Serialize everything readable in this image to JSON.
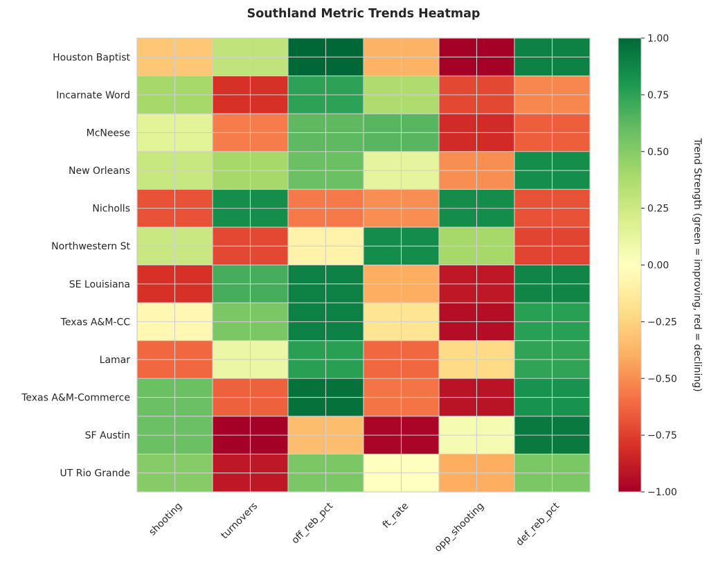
{
  "chart_data": {
    "type": "heatmap",
    "title": "Southland Metric Trends Heatmap",
    "xlabel": "",
    "ylabel": "",
    "colormap": "RdYlGn",
    "grid": true,
    "x_categories": [
      "shooting",
      "turnovers",
      "off_reb_pct",
      "ft_rate",
      "opp_shooting",
      "def_reb_pct"
    ],
    "y_categories": [
      "Houston Baptist",
      "Incarnate Word",
      "McNeese",
      "New Orleans",
      "Nicholls",
      "Northwestern St",
      "SE Louisiana",
      "Texas A&M-CC",
      "Lamar",
      "Texas A&M-Commerce",
      "SF Austin",
      "UT Rio Grande"
    ],
    "values": [
      [
        -0.3,
        0.3,
        1.0,
        -0.38,
        -1.0,
        0.9
      ],
      [
        0.4,
        -0.8,
        0.75,
        0.37,
        -0.72,
        -0.52
      ],
      [
        0.15,
        -0.55,
        0.62,
        0.64,
        -0.82,
        -0.65
      ],
      [
        0.27,
        0.4,
        0.58,
        0.13,
        -0.5,
        0.84
      ],
      [
        -0.69,
        0.84,
        -0.56,
        -0.5,
        0.85,
        -0.69
      ],
      [
        0.26,
        -0.72,
        -0.08,
        0.85,
        0.4,
        -0.73
      ],
      [
        -0.8,
        0.69,
        0.9,
        -0.4,
        -0.9,
        0.88
      ],
      [
        -0.05,
        0.53,
        0.9,
        -0.17,
        -0.94,
        0.76
      ],
      [
        -0.62,
        0.1,
        0.76,
        -0.62,
        -0.22,
        0.74
      ],
      [
        0.58,
        -0.64,
        0.96,
        -0.58,
        -0.92,
        0.82
      ],
      [
        0.58,
        -1.0,
        -0.34,
        -0.98,
        0.05,
        0.93
      ],
      [
        0.5,
        -0.9,
        0.53,
        0.0,
        -0.4,
        0.53
      ]
    ],
    "vmin": -1.0,
    "vmax": 1.0,
    "colorbar": {
      "label": "Trend Strength (green = improving, red = declining)",
      "ticks": [
        1.0,
        0.75,
        0.5,
        0.25,
        0.0,
        -0.25,
        -0.5,
        -0.75,
        -1.0
      ],
      "tick_labels": [
        "1.00",
        "0.75",
        "0.50",
        "0.25",
        "0.00",
        "−0.25",
        "−0.50",
        "−0.75",
        "−1.00"
      ],
      "placement": "right"
    }
  }
}
